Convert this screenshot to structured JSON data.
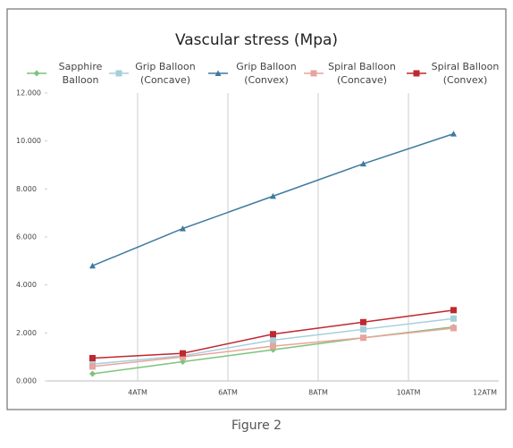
{
  "chart_data": {
    "type": "line",
    "title": "Vascular stress (Mpa)",
    "caption": "Figure 2",
    "xlim": [
      2,
      12
    ],
    "xticks": [
      {
        "value": 4,
        "label": "4ATM"
      },
      {
        "value": 6,
        "label": "6ATM"
      },
      {
        "value": 8,
        "label": "8ATM"
      },
      {
        "value": 10,
        "label": "10ATM"
      },
      {
        "value": 12,
        "label": "12ATM"
      }
    ],
    "ylim": [
      0,
      12
    ],
    "yticks": [
      {
        "value": 0,
        "label": "0.000"
      },
      {
        "value": 2,
        "label": "2.000"
      },
      {
        "value": 4,
        "label": "4.000"
      },
      {
        "value": 6,
        "label": "6.000"
      },
      {
        "value": 8,
        "label": "8.000"
      },
      {
        "value": 10,
        "label": "10.000"
      },
      {
        "value": 12,
        "label": "12.000"
      }
    ],
    "grid": true,
    "x": [
      3,
      5,
      7,
      9,
      11
    ],
    "series": [
      {
        "name": "Sapphire Balloon",
        "color": "#7cc47c",
        "marker": "diamond",
        "values": [
          0.3,
          0.8,
          1.3,
          1.8,
          2.25
        ]
      },
      {
        "name": "Grip Balloon (Concave)",
        "color": "#a6cfdc",
        "marker": "square",
        "values": [
          0.7,
          1.05,
          1.7,
          2.15,
          2.6
        ]
      },
      {
        "name": "Grip Balloon (Convex)",
        "color": "#3e7aa0",
        "marker": "triangle",
        "values": [
          4.8,
          6.35,
          7.7,
          9.05,
          10.3
        ]
      },
      {
        "name": "Spiral Balloon (Concave)",
        "color": "#e8a49c",
        "marker": "square",
        "values": [
          0.6,
          1.0,
          1.45,
          1.8,
          2.2
        ]
      },
      {
        "name": "Spiral Balloon (Convex)",
        "color": "#c0282f",
        "marker": "square",
        "values": [
          0.95,
          1.15,
          1.95,
          2.45,
          2.95
        ]
      }
    ]
  }
}
